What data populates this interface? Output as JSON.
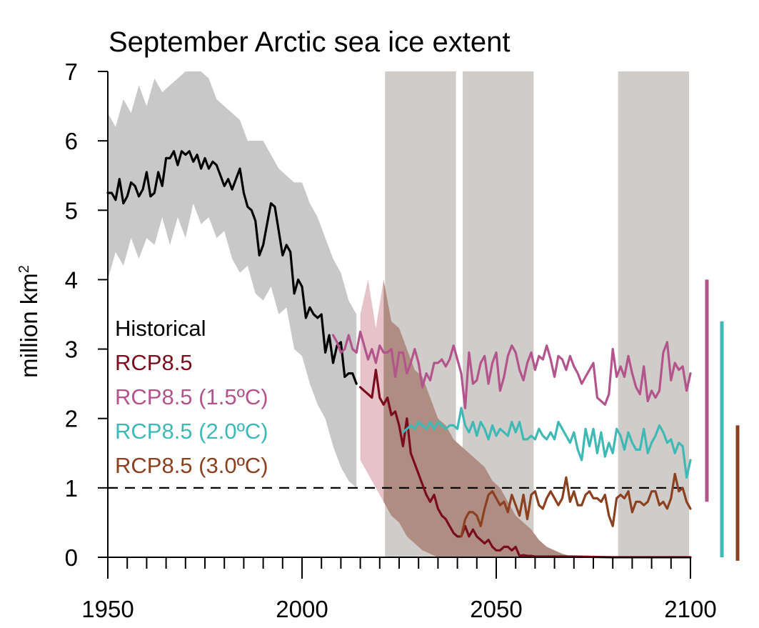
{
  "chart_data": {
    "type": "line",
    "title": "September Arctic sea ice extent",
    "xlabel": "",
    "ylabel": "million km",
    "ylabel_superscript": "2",
    "xlim": [
      1950,
      2100
    ],
    "ylim": [
      0,
      7
    ],
    "xticks": [
      1950,
      2000,
      2050,
      2100
    ],
    "yticks": [
      0,
      1,
      2,
      3,
      4,
      5,
      6,
      7
    ],
    "x_minor_tick_step": 5,
    "reference_line": {
      "y": 1,
      "style": "dashed",
      "color": "#000000"
    },
    "shaded_periods": [
      [
        2021,
        2040
      ],
      [
        2041,
        2060
      ],
      [
        2081,
        2100
      ]
    ],
    "colors": {
      "period_shading": "#d0ccc9",
      "historical": "#000000",
      "historical_range": "#c8c8c8",
      "rcp85": "#7a0c1e",
      "rcp85_range": "#b08d82",
      "rcp85_range_early": "#e6c3c9",
      "rcp85_15": "#b3548c",
      "rcp85_20": "#3fb9b6",
      "rcp85_30": "#8b4020"
    },
    "legend": {
      "placement": "left-middle",
      "entries": [
        {
          "label": "Historical",
          "color": "#000000"
        },
        {
          "label": "RCP8.5",
          "color": "#7a0c1e"
        },
        {
          "label": "RCP8.5 (1.5ºC)",
          "color": "#b3548c"
        },
        {
          "label": "RCP8.5 (2.0ºC)",
          "color": "#3fb9b6"
        },
        {
          "label": "RCP8.5 (3.0ºC)",
          "color": "#8b4020"
        }
      ]
    },
    "range_bars": [
      {
        "series": "RCP8.5 (1.5ºC)",
        "ymin": 0.8,
        "ymax": 4.0,
        "color": "#b3548c"
      },
      {
        "series": "RCP8.5 (2.0ºC)",
        "ymin": 0.0,
        "ymax": 3.4,
        "color": "#3fb9b6"
      },
      {
        "series": "RCP8.5 (3.0ºC)",
        "ymin": -0.05,
        "ymax": 1.9,
        "color": "#8b4020"
      }
    ],
    "series": [
      {
        "name": "Historical",
        "x": [
          1950,
          1951,
          1952,
          1953,
          1954,
          1955,
          1956,
          1957,
          1958,
          1959,
          1960,
          1961,
          1962,
          1963,
          1964,
          1965,
          1966,
          1967,
          1968,
          1969,
          1970,
          1971,
          1972,
          1973,
          1974,
          1975,
          1976,
          1977,
          1978,
          1979,
          1980,
          1981,
          1982,
          1983,
          1984,
          1985,
          1986,
          1987,
          1988,
          1989,
          1990,
          1991,
          1992,
          1993,
          1994,
          1995,
          1996,
          1997,
          1998,
          1999,
          2000,
          2001,
          2002,
          2003,
          2004,
          2005,
          2006,
          2007,
          2008,
          2009,
          2010,
          2011,
          2012,
          2013,
          2014
        ],
        "y": [
          5.25,
          5.25,
          5.15,
          5.45,
          5.1,
          5.2,
          5.4,
          5.35,
          5.2,
          5.3,
          5.55,
          5.2,
          5.25,
          5.55,
          5.35,
          5.75,
          5.75,
          5.85,
          5.65,
          5.85,
          5.8,
          5.85,
          5.7,
          5.8,
          5.6,
          5.75,
          5.6,
          5.7,
          5.65,
          5.5,
          5.35,
          5.45,
          5.3,
          5.45,
          5.6,
          5.25,
          5.05,
          5.0,
          4.85,
          4.35,
          4.5,
          4.8,
          5.1,
          5.05,
          4.7,
          4.35,
          4.5,
          4.4,
          3.8,
          4.0,
          3.9,
          3.45,
          3.6,
          3.5,
          3.45,
          3.5,
          2.95,
          3.2,
          2.8,
          3.05,
          3.1,
          2.6,
          2.65,
          2.65,
          2.5
        ]
      },
      {
        "name": "RCP8.5",
        "x": [
          2015,
          2016,
          2017,
          2018,
          2019,
          2020,
          2021,
          2022,
          2023,
          2024,
          2025,
          2026,
          2027,
          2028,
          2029,
          2030,
          2031,
          2032,
          2033,
          2034,
          2035,
          2036,
          2037,
          2038,
          2039,
          2040,
          2041,
          2042,
          2043,
          2044,
          2045,
          2046,
          2047,
          2048,
          2049,
          2050,
          2051,
          2052,
          2053,
          2054,
          2055,
          2056,
          2057,
          2058,
          2059,
          2060,
          2065,
          2070,
          2080,
          2090,
          2100
        ],
        "y": [
          2.45,
          2.4,
          2.35,
          2.3,
          2.7,
          2.3,
          2.2,
          2.3,
          2.05,
          2.1,
          1.9,
          1.6,
          2.0,
          1.5,
          1.35,
          1.2,
          1.05,
          0.9,
          0.8,
          0.9,
          0.7,
          0.6,
          0.55,
          0.45,
          0.35,
          0.3,
          0.3,
          0.45,
          0.3,
          0.4,
          0.3,
          0.25,
          0.2,
          0.25,
          0.15,
          0.1,
          0.1,
          0.15,
          0.15,
          0.1,
          0.15,
          0.02,
          0.03,
          0.02,
          0.02,
          0.01,
          0.01,
          0.01,
          0.0,
          0.0,
          0.0
        ]
      },
      {
        "name": "RCP8.5 (1.5ºC)",
        "x": [
          2008,
          2009,
          2010,
          2011,
          2012,
          2013,
          2014,
          2015,
          2016,
          2017,
          2018,
          2019,
          2020,
          2021,
          2022,
          2023,
          2024,
          2025,
          2026,
          2027,
          2028,
          2029,
          2030,
          2031,
          2032,
          2033,
          2034,
          2035,
          2036,
          2037,
          2038,
          2039,
          2040,
          2041,
          2042,
          2043,
          2044,
          2045,
          2046,
          2047,
          2048,
          2049,
          2050,
          2051,
          2052,
          2053,
          2054,
          2055,
          2056,
          2057,
          2058,
          2059,
          2060,
          2061,
          2062,
          2063,
          2064,
          2065,
          2066,
          2067,
          2068,
          2069,
          2070,
          2071,
          2072,
          2073,
          2074,
          2075,
          2076,
          2077,
          2078,
          2079,
          2080,
          2081,
          2082,
          2083,
          2084,
          2085,
          2086,
          2087,
          2088,
          2089,
          2090,
          2091,
          2092,
          2093,
          2094,
          2095,
          2096,
          2097,
          2098,
          2099,
          2100
        ],
        "y": [
          3.2,
          3.1,
          2.95,
          3.0,
          3.2,
          3.0,
          2.95,
          3.25,
          3.05,
          2.85,
          3.0,
          2.8,
          3.05,
          2.95,
          2.95,
          3.0,
          2.6,
          2.95,
          2.95,
          2.65,
          2.8,
          3.0,
          2.8,
          2.45,
          2.65,
          2.55,
          2.8,
          2.8,
          2.85,
          2.75,
          2.85,
          3.05,
          2.85,
          2.65,
          2.15,
          2.95,
          2.5,
          2.55,
          2.8,
          2.9,
          2.5,
          2.8,
          2.95,
          2.4,
          2.6,
          2.9,
          3.05,
          2.95,
          2.7,
          2.55,
          2.8,
          2.95,
          2.7,
          2.9,
          2.85,
          3.05,
          2.85,
          2.6,
          2.9,
          2.85,
          2.7,
          2.9,
          2.75,
          2.65,
          2.5,
          2.6,
          2.7,
          2.8,
          2.3,
          2.25,
          2.2,
          2.35,
          3.0,
          2.6,
          2.75,
          2.6,
          2.9,
          2.65,
          2.45,
          2.35,
          2.75,
          2.25,
          2.4,
          2.3,
          2.4,
          2.95,
          3.1,
          2.55,
          2.8,
          2.7,
          2.75,
          2.4,
          2.65
        ]
      },
      {
        "name": "RCP8.5 (2.0ºC)",
        "x": [
          2026,
          2027,
          2028,
          2029,
          2030,
          2031,
          2032,
          2033,
          2034,
          2035,
          2036,
          2037,
          2038,
          2039,
          2040,
          2041,
          2042,
          2043,
          2044,
          2045,
          2046,
          2047,
          2048,
          2049,
          2050,
          2051,
          2052,
          2053,
          2054,
          2055,
          2056,
          2057,
          2058,
          2059,
          2060,
          2061,
          2062,
          2063,
          2064,
          2065,
          2066,
          2067,
          2068,
          2069,
          2070,
          2071,
          2072,
          2073,
          2074,
          2075,
          2076,
          2077,
          2078,
          2079,
          2080,
          2081,
          2082,
          2083,
          2084,
          2085,
          2086,
          2087,
          2088,
          2089,
          2090,
          2091,
          2092,
          2093,
          2094,
          2095,
          2096,
          2097,
          2098,
          2099,
          2100
        ],
        "y": [
          1.8,
          1.85,
          1.9,
          1.85,
          1.95,
          1.9,
          1.85,
          1.95,
          1.85,
          1.95,
          1.9,
          1.85,
          1.9,
          1.9,
          1.85,
          2.15,
          1.9,
          1.8,
          1.95,
          1.75,
          1.95,
          1.85,
          1.7,
          1.9,
          1.75,
          1.85,
          1.8,
          1.75,
          1.95,
          1.8,
          1.95,
          1.7,
          1.7,
          1.75,
          1.7,
          1.85,
          1.75,
          1.7,
          1.8,
          1.7,
          1.95,
          1.85,
          1.75,
          1.65,
          1.8,
          1.55,
          1.4,
          1.85,
          1.6,
          1.85,
          1.5,
          1.8,
          1.45,
          1.65,
          1.5,
          1.85,
          1.75,
          1.55,
          1.8,
          1.65,
          1.55,
          1.55,
          1.85,
          1.5,
          1.65,
          1.75,
          1.9,
          1.8,
          1.65,
          1.7,
          1.5,
          1.65,
          1.6,
          1.15,
          1.4
        ]
      },
      {
        "name": "RCP8.5 (3.0ºC)",
        "x": [
          2041,
          2042,
          2043,
          2044,
          2045,
          2046,
          2047,
          2048,
          2049,
          2050,
          2051,
          2052,
          2053,
          2054,
          2055,
          2056,
          2057,
          2058,
          2059,
          2060,
          2061,
          2062,
          2063,
          2064,
          2065,
          2066,
          2067,
          2068,
          2069,
          2070,
          2071,
          2072,
          2073,
          2074,
          2075,
          2076,
          2077,
          2078,
          2079,
          2080,
          2081,
          2082,
          2083,
          2084,
          2085,
          2086,
          2087,
          2088,
          2089,
          2090,
          2091,
          2092,
          2093,
          2094,
          2095,
          2096,
          2097,
          2098,
          2099,
          2100
        ],
        "y": [
          0.3,
          0.55,
          0.65,
          0.65,
          0.6,
          0.45,
          0.7,
          0.9,
          0.95,
          0.85,
          0.75,
          0.8,
          0.65,
          0.9,
          0.75,
          0.6,
          0.9,
          0.55,
          0.9,
          0.95,
          0.75,
          0.7,
          0.85,
          0.95,
          0.85,
          0.75,
          0.85,
          1.15,
          0.8,
          0.95,
          0.75,
          0.75,
          0.9,
          0.95,
          0.85,
          0.85,
          0.8,
          0.9,
          0.6,
          0.45,
          0.85,
          0.9,
          0.85,
          0.95,
          0.65,
          0.8,
          0.8,
          0.75,
          0.8,
          0.95,
          0.95,
          0.75,
          0.8,
          0.7,
          0.85,
          1.2,
          0.95,
          1.0,
          0.8,
          0.7
        ]
      }
    ],
    "ranges": [
      {
        "name": "Historical range",
        "x": [
          1950,
          1952,
          1954,
          1956,
          1958,
          1960,
          1962,
          1964,
          1966,
          1968,
          1970,
          1972,
          1974,
          1976,
          1978,
          1980,
          1982,
          1984,
          1986,
          1988,
          1990,
          1992,
          1994,
          1996,
          1998,
          2000,
          2002,
          2004,
          2006,
          2008,
          2010,
          2012,
          2014
        ],
        "low": [
          4.0,
          4.4,
          4.2,
          4.6,
          4.3,
          4.6,
          4.5,
          4.9,
          4.5,
          4.9,
          4.6,
          5.1,
          4.8,
          4.9,
          4.6,
          4.7,
          4.3,
          4.1,
          4.2,
          3.8,
          3.7,
          3.9,
          3.5,
          3.6,
          3.0,
          2.9,
          2.5,
          2.2,
          2.0,
          1.6,
          1.3,
          1.1,
          1.0
        ],
        "high": [
          6.4,
          6.2,
          6.6,
          6.4,
          6.8,
          6.5,
          6.9,
          6.7,
          6.8,
          6.9,
          7.0,
          7.0,
          7.0,
          6.9,
          6.6,
          6.5,
          6.4,
          6.3,
          6.0,
          6.0,
          6.0,
          5.8,
          5.6,
          5.5,
          5.4,
          5.4,
          5.1,
          4.9,
          4.6,
          4.3,
          4.1,
          3.7,
          3.5
        ]
      },
      {
        "name": "RCP8.5 range",
        "x": [
          2015,
          2017,
          2019,
          2021,
          2023,
          2025,
          2027,
          2029,
          2031,
          2033,
          2035,
          2037,
          2039,
          2041,
          2043,
          2045,
          2047,
          2049,
          2051,
          2053,
          2055,
          2057,
          2059,
          2061,
          2063,
          2065,
          2067,
          2069
        ],
        "low": [
          1.4,
          1.2,
          1.0,
          0.8,
          0.6,
          0.5,
          0.3,
          0.2,
          0.1,
          0.05,
          0.0,
          0.0,
          0.0,
          0.0,
          0.0,
          0.0,
          0.0,
          0.0,
          0.0,
          0.0,
          0.0,
          0.0,
          0.0,
          0.0,
          0.0,
          0.0,
          0.0,
          0.0
        ],
        "high": [
          3.5,
          4.0,
          3.3,
          4.0,
          3.4,
          3.3,
          3.0,
          2.7,
          2.6,
          2.3,
          2.0,
          1.9,
          1.7,
          1.6,
          1.5,
          1.4,
          1.3,
          1.1,
          1.0,
          0.8,
          0.6,
          0.5,
          0.4,
          0.25,
          0.15,
          0.1,
          0.05,
          0.02
        ]
      }
    ]
  }
}
